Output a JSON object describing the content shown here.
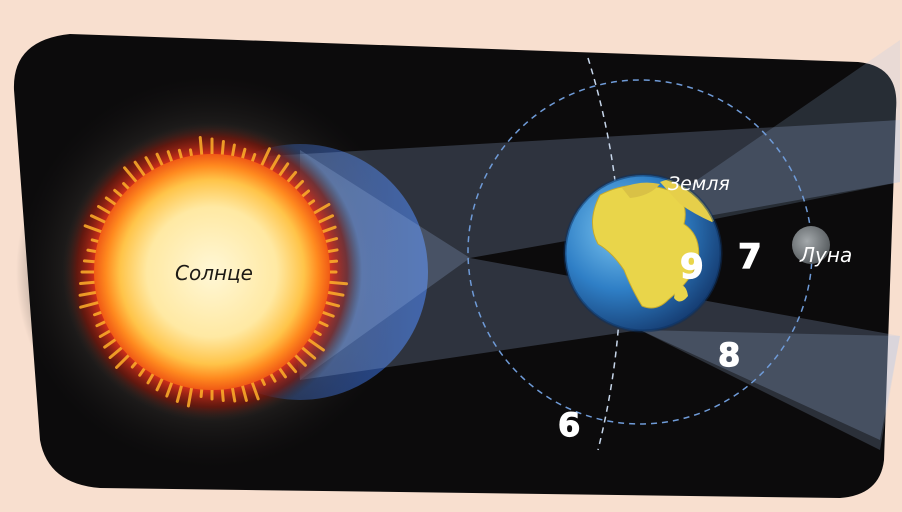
{
  "labels": {
    "sun": "Солнце",
    "earth": "Земля",
    "moon": "Луна"
  },
  "markers": {
    "m6": "6",
    "m7": "7",
    "m8": "8",
    "m9": "9"
  },
  "colors": {
    "background": "#f8dfcf",
    "panel": "#0c0b0c",
    "sun_core": "#ffe9a3",
    "sun_corona": "#e0311a",
    "earth_ocean": "#2f7fc6",
    "earth_land": "#e9d54a",
    "moon": "#7b8083",
    "beam": "#a9c6f2",
    "orbit": "#6f9bd8",
    "markers": "#ffffff"
  }
}
